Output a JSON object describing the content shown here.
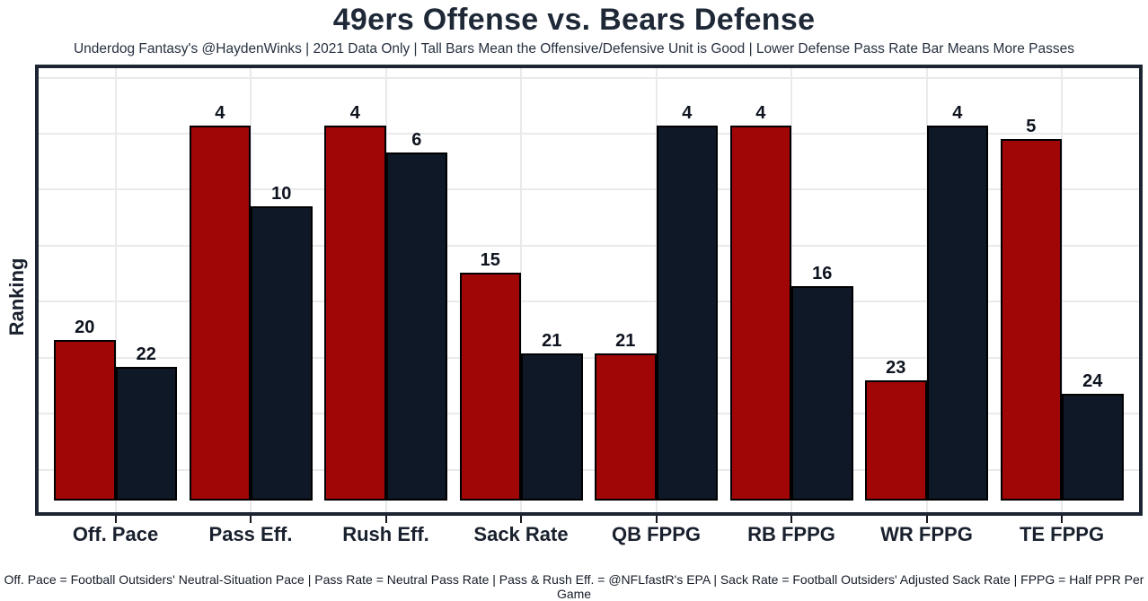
{
  "chart_data": {
    "type": "bar",
    "title": "49ers Offense vs. Bears Defense",
    "subtitle": "Underdog Fantasy's @HaydenWinks | 2021 Data Only | Tall Bars Mean the Offensive/Defensive Unit is Good | Lower Defense Pass Rate Bar Means More Passes",
    "caption": "Off. Pace = Football Outsiders' Neutral-Situation Pace | Pass Rate = Neutral Pass Rate | Pass & Rush Eff. = @NFLfastR's EPA | Sack Rate = Football Outsiders' Adjusted Sack Rate | FPPG = Half PPR Per Game",
    "xlabel": "",
    "ylabel": "Ranking",
    "categories": [
      "Off. Pace",
      "Pass Eff.",
      "Rush Eff.",
      "Sack Rate",
      "QB FPPG",
      "RB FPPG",
      "WR FPPG",
      "TE FPPG"
    ],
    "series": [
      {
        "name": "49ers Offense",
        "color": "#a00606",
        "values": [
          20,
          4,
          4,
          15,
          21,
          4,
          23,
          5
        ]
      },
      {
        "name": "Bears Defense",
        "color": "#0f1826",
        "values": [
          22,
          10,
          6,
          21,
          4,
          16,
          4,
          24
        ]
      }
    ],
    "value_type": "NFL ranking out of 32 (1 = best); taller bar = better rank",
    "bar_height_rule": "bar height proportional to (32 - rank)",
    "ylim": [
      0,
      32
    ],
    "y_tick_labels": [],
    "grid": "light gray horizontal gridlines and a vertical gridline at each category center",
    "legend_position": "none"
  },
  "style": {
    "offense_bar_color": "#a00606",
    "defense_bar_color": "#0f1826",
    "bar_outline_color": "#000000",
    "panel_border_color": "#1d2533",
    "gridline_color": "#eaeaed",
    "text_color": "#1a212e",
    "background_color": "#ffffff"
  }
}
